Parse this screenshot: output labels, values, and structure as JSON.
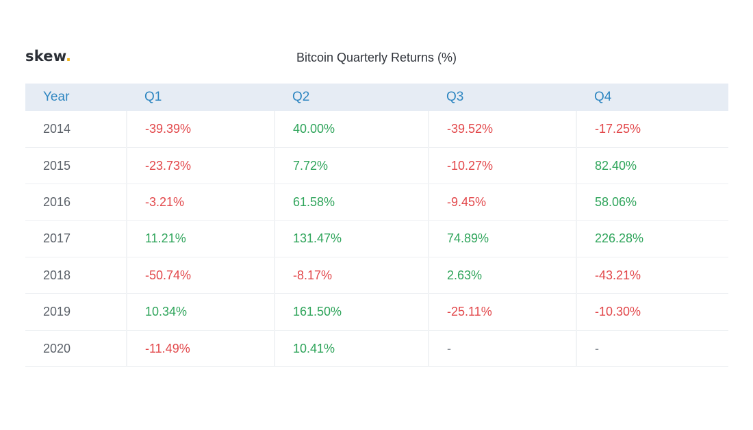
{
  "brand": {
    "name": "skew",
    "dot": "."
  },
  "chart_data": {
    "type": "table",
    "title": "Bitcoin Quarterly Returns (%)",
    "columns": [
      "Year",
      "Q1",
      "Q2",
      "Q3",
      "Q4"
    ],
    "rows": [
      {
        "year": "2014",
        "values": [
          "-39.39%",
          "40.00%",
          "-39.52%",
          "-17.25%"
        ]
      },
      {
        "year": "2015",
        "values": [
          "-23.73%",
          "7.72%",
          "-10.27%",
          "82.40%"
        ]
      },
      {
        "year": "2016",
        "values": [
          "-3.21%",
          "61.58%",
          "-9.45%",
          "58.06%"
        ]
      },
      {
        "year": "2017",
        "values": [
          "11.21%",
          "131.47%",
          "74.89%",
          "226.28%"
        ]
      },
      {
        "year": "2018",
        "values": [
          "-50.74%",
          "-8.17%",
          "2.63%",
          "-43.21%"
        ]
      },
      {
        "year": "2019",
        "values": [
          "10.34%",
          "161.50%",
          "-25.11%",
          "-10.30%"
        ]
      },
      {
        "year": "2020",
        "values": [
          "-11.49%",
          "10.41%",
          "-",
          "-"
        ]
      }
    ]
  },
  "colors": {
    "positive": "#2ea45a",
    "negative": "#e2474a",
    "header_text": "#2e86c1",
    "header_bg": "#e6ecf4",
    "brand_dot": "#f2b51b"
  }
}
